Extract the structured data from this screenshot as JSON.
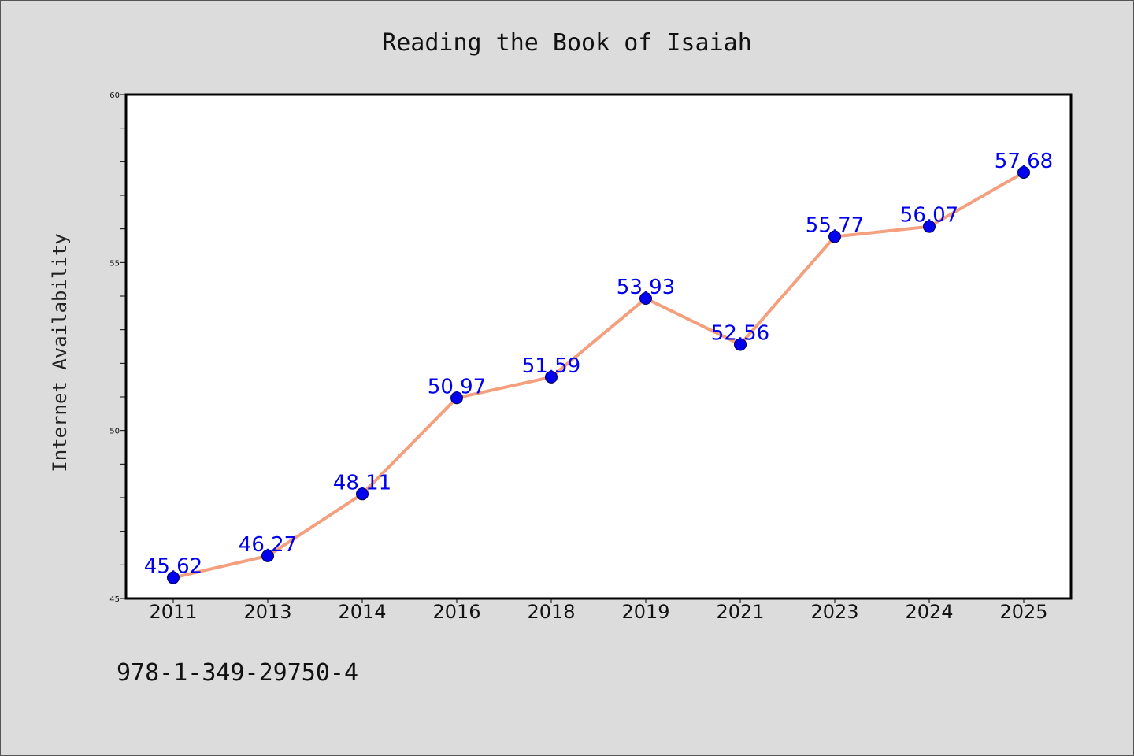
{
  "chart_data": {
    "type": "line",
    "title": "Reading the Book of Isaiah",
    "xlabel": "",
    "ylabel": "Internet Availability",
    "categories": [
      "2011",
      "2013",
      "2014",
      "2016",
      "2018",
      "2019",
      "2021",
      "2023",
      "2024",
      "2025"
    ],
    "series": [
      {
        "values": [
          45.62,
          46.27,
          48.11,
          50.97,
          51.59,
          53.93,
          52.56,
          55.77,
          56.07,
          57.68
        ],
        "line_color": "#f4a07e",
        "marker_color": "#0000ee"
      }
    ],
    "data_labels": [
      "45.62",
      "46.27",
      "48.11",
      "50.97",
      "51.59",
      "53.93",
      "52.56",
      "55.77",
      "56.07",
      "57.68"
    ],
    "ylim": [
      45,
      60
    ],
    "y_ticks": [
      "45",
      "50",
      "55",
      "60"
    ],
    "grid": false,
    "legend": "none",
    "label_color": "#0000ee"
  },
  "footer": {
    "isbn": "978-1-349-29750-4"
  }
}
